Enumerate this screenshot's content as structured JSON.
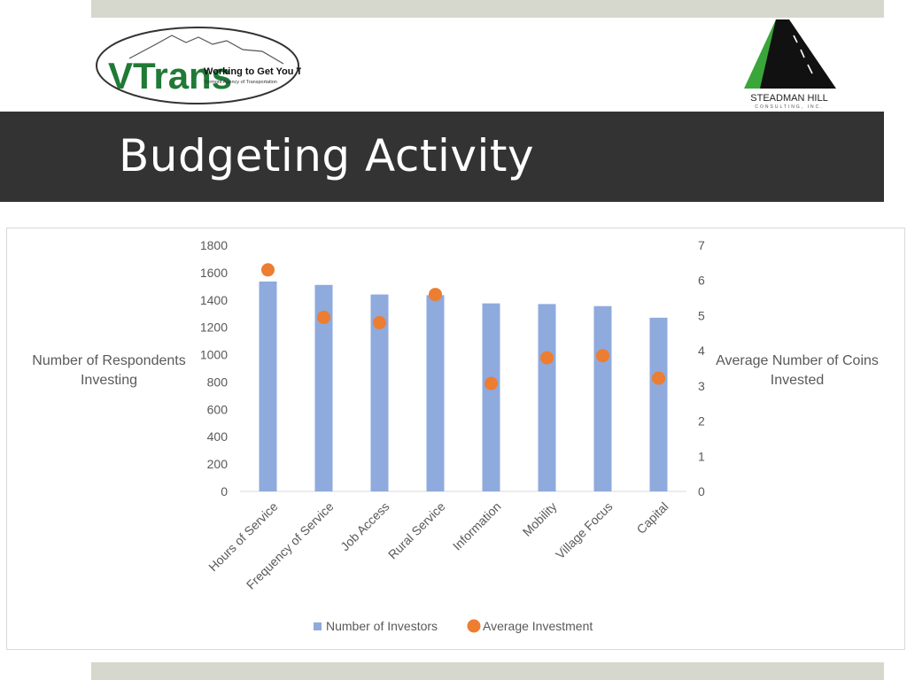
{
  "slide": {
    "title": "Budgeting Activity"
  },
  "logos": {
    "vtrans": {
      "wordmark": "VTrans",
      "tagline": "Working to Get You There",
      "subtitle": "Vermont Agency of Transportation"
    },
    "steadman": {
      "name": "STEADMAN HILL",
      "subtitle": "CONSULTING, INC."
    }
  },
  "colors": {
    "bars": "#8faadc",
    "dots": "#ed7d31",
    "title_bar": "#333333",
    "band": "#d6d8cd",
    "logo_green": "#3aa63a"
  },
  "chart_data": {
    "type": "bar",
    "categories": [
      "Hours of Service",
      "Frequency of Service",
      "Job Access",
      "Rural Service",
      "Information",
      "Mobility",
      "Village Focus",
      "Capital"
    ],
    "series": [
      {
        "name": "Number of Investors",
        "type": "bar",
        "axis": "left",
        "values": [
          1535,
          1510,
          1440,
          1435,
          1375,
          1370,
          1355,
          1270
        ]
      },
      {
        "name": "Average Investment",
        "type": "scatter",
        "axis": "right",
        "values": [
          6.3,
          4.95,
          4.8,
          5.6,
          3.07,
          3.8,
          3.86,
          3.22
        ]
      }
    ],
    "ylabel": "Number of Respondents Investing",
    "y2label": "Average Number of Coins Invested",
    "ylim": [
      0,
      1800
    ],
    "yticks": [
      "0",
      "200",
      "400",
      "600",
      "800",
      "1000",
      "1200",
      "1400",
      "1600",
      "1800"
    ],
    "y2lim": [
      0,
      7
    ],
    "y2ticks": [
      "0",
      "1",
      "2",
      "3",
      "4",
      "5",
      "6",
      "7"
    ],
    "grid": false,
    "legend_position": "bottom"
  }
}
